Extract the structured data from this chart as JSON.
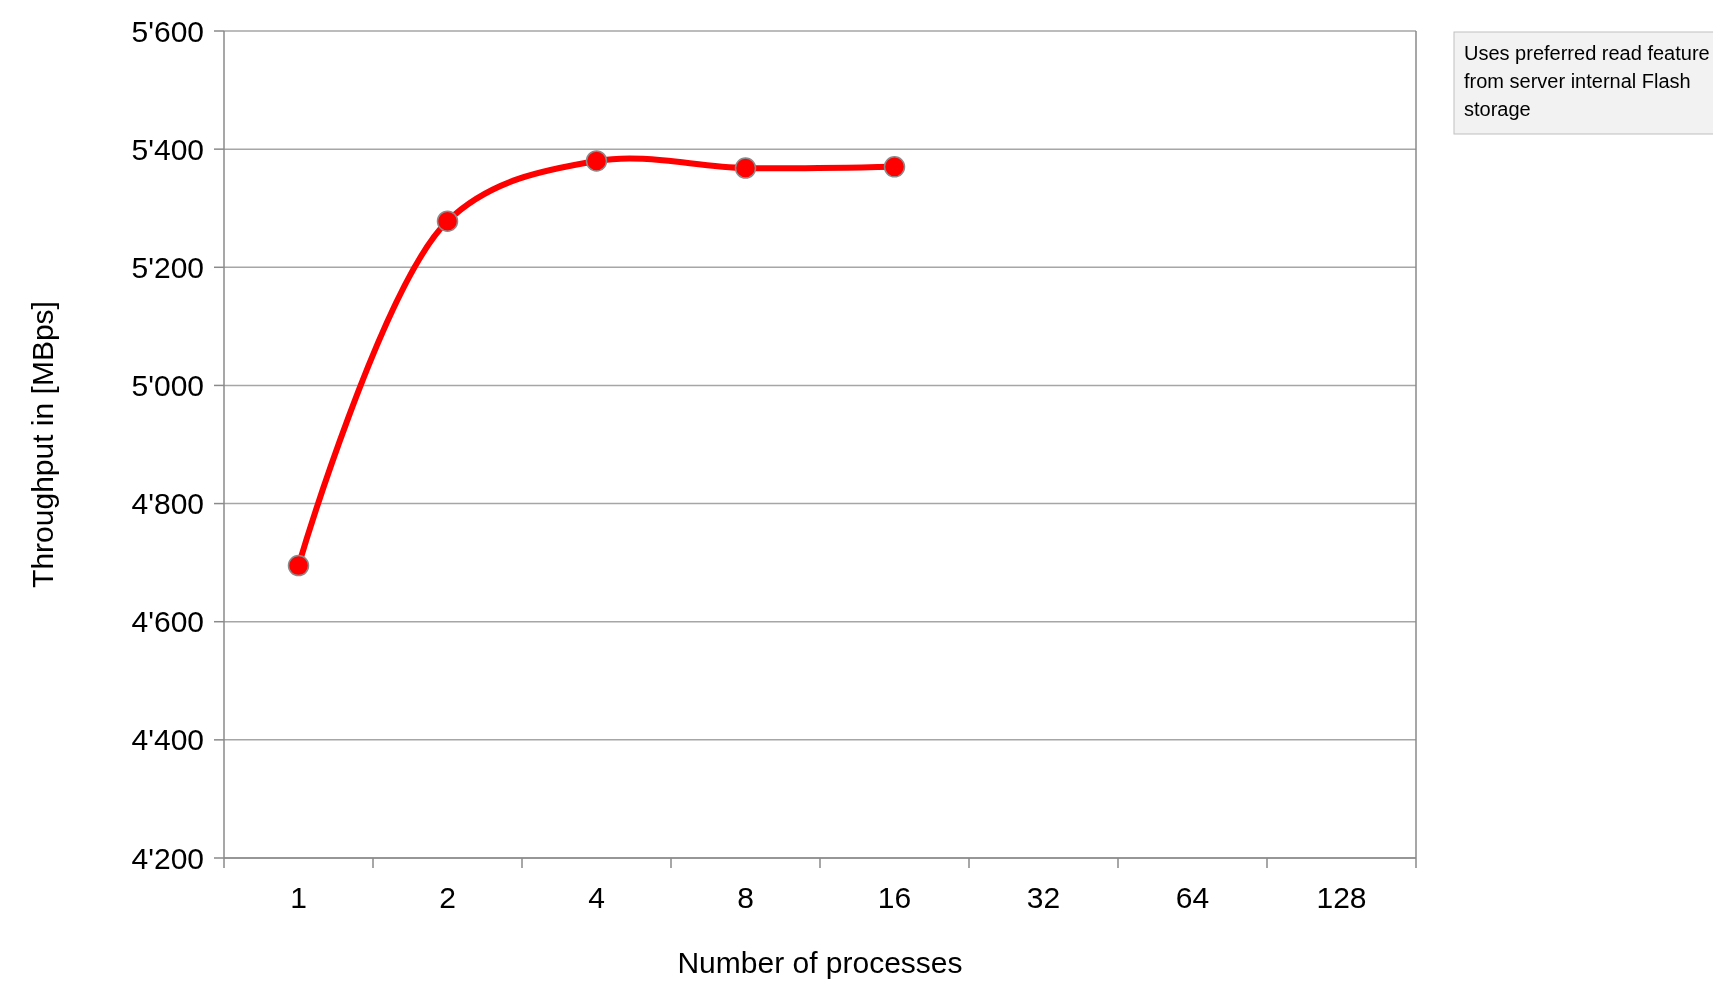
{
  "chart_data": {
    "type": "line",
    "xlabel": "Number of processes",
    "ylabel": "Throughput in [MBps]",
    "categories": [
      "1",
      "2",
      "4",
      "8",
      "16",
      "32",
      "64",
      "128"
    ],
    "series": [
      {
        "color": "#ff0000",
        "values": [
          4695,
          5278,
          5380,
          5368,
          5370,
          null,
          null,
          null
        ]
      }
    ],
    "ylim": [
      4200,
      5600
    ],
    "yticks": [
      {
        "value": 4200,
        "label": "4'200"
      },
      {
        "value": 4400,
        "label": "4'400"
      },
      {
        "value": 4600,
        "label": "4'600"
      },
      {
        "value": 4800,
        "label": "4'800"
      },
      {
        "value": 5000,
        "label": "5'000"
      },
      {
        "value": 5200,
        "label": "5'200"
      },
      {
        "value": 5400,
        "label": "5'400"
      },
      {
        "value": 5600,
        "label": "5'600"
      }
    ],
    "grid": "y",
    "marker": "circle",
    "line_style": "solid",
    "annotations": [
      "Uses preferred read feature from server internal Flash storage"
    ]
  }
}
